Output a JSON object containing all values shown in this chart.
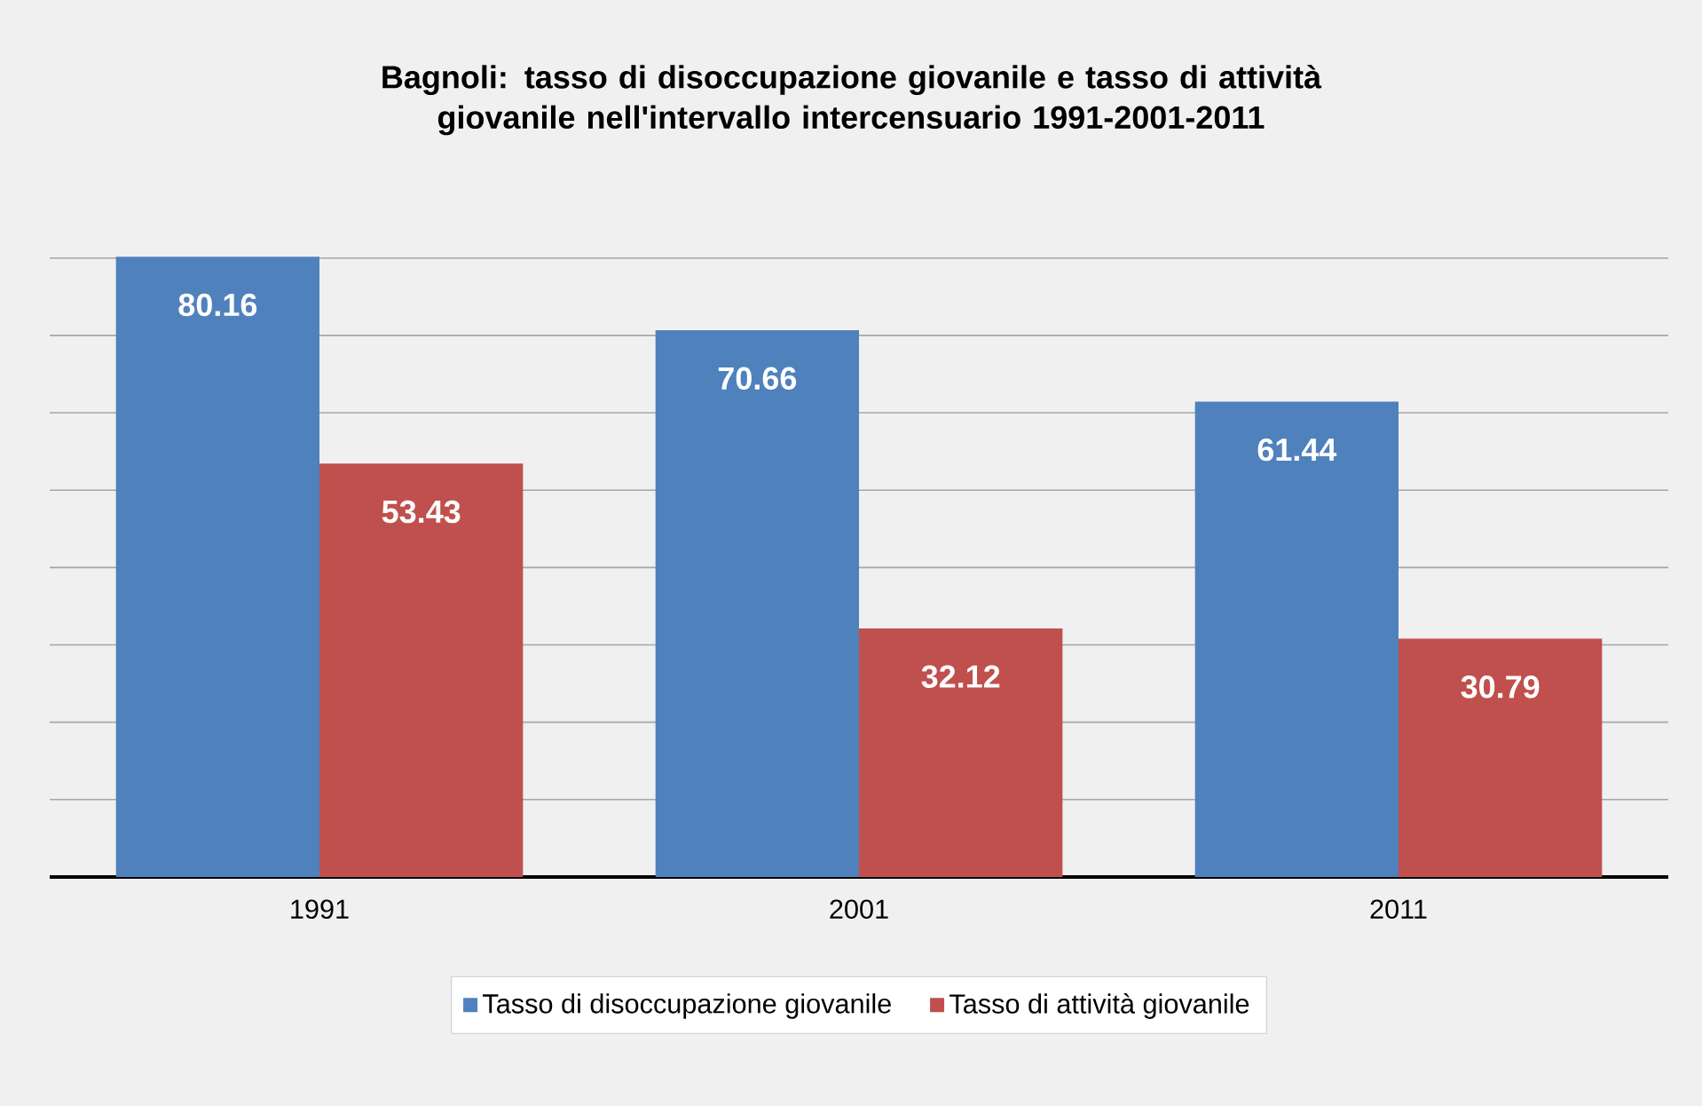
{
  "chart_data": {
    "type": "bar",
    "title": "Bagnoli: tasso di disoccupazione giovanile e tasso di attività giovanile nell'intervallo intercensuario 1991-2001-2011",
    "categories": [
      "1991",
      "2001",
      "2011"
    ],
    "series": [
      {
        "name": "Tasso di disoccupazione giovanile",
        "color": "#4f81bd",
        "values": [
          80.16,
          70.66,
          61.44
        ]
      },
      {
        "name": "Tasso di attività giovanile",
        "color": "#c0504d",
        "values": [
          53.43,
          32.12,
          30.79
        ]
      }
    ],
    "grid": "y",
    "tick_labels": "x",
    "data_labels": true,
    "legend": "bottom"
  }
}
